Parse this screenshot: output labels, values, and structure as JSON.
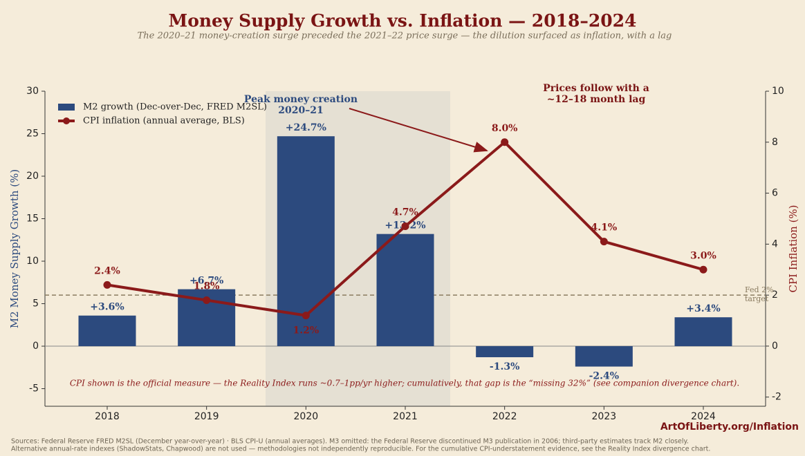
{
  "chart_data": {
    "type": "bar-line",
    "title": "Money Supply Growth vs. Inflation — 2018–2024",
    "subtitle": "The 2020–21 money-creation surge preceded the 2021–22 price surge — the dilution surfaced as inflation, with a lag",
    "categories": [
      "2018",
      "2019",
      "2020",
      "2021",
      "2022",
      "2023",
      "2024"
    ],
    "series": [
      {
        "name": "M2 growth (Dec-over-Dec, FRED M2SL)",
        "color": "#2c4a7e",
        "type": "bar",
        "values": [
          3.6,
          6.7,
          24.7,
          13.2,
          -1.3,
          -2.4,
          3.4
        ],
        "value_labels": [
          "+3.6%",
          "+6.7%",
          "+24.7%",
          "+13.2%",
          "-1.3%",
          "-2.4%",
          "+3.4%"
        ]
      },
      {
        "name": "CPI inflation (annual average, BLS)",
        "color": "#8b1a1a",
        "type": "line",
        "axis": "y2",
        "values": [
          2.4,
          1.8,
          1.2,
          4.7,
          8.0,
          4.1,
          3.0
        ],
        "value_labels": [
          "2.4%",
          "1.8%",
          "1.2%",
          "4.7%",
          "8.0%",
          "4.1%",
          "3.0%"
        ]
      }
    ],
    "ylabel": "M2 Money Supply Growth (%)",
    "y2label": "CPI Inflation (%)",
    "ylim": [
      -7.07,
      30
    ],
    "yticks": [
      -5,
      0,
      5,
      10,
      15,
      20,
      25,
      30
    ],
    "y2lim": [
      -2.36,
      10
    ],
    "y2ticks": [
      -2,
      0,
      2,
      4,
      6,
      8,
      10
    ],
    "grid": false,
    "legend": "upper-left",
    "target_line": {
      "value": 2,
      "axis": "y2",
      "label": [
        "Fed 2%",
        "target"
      ]
    },
    "annotations": [
      {
        "text": [
          "Peak money creation",
          "2020–21"
        ]
      },
      {
        "text": [
          "Prices follow with a",
          "~12–18 month lag"
        ]
      }
    ],
    "note": "CPI shown is the official measure — the Reality Index runs ~0.7–1pp/yr higher; cumulatively, that gap is the “missing 32%” (see companion divergence chart).",
    "brand": "ArtOfLiberty.org/Inflation",
    "sources": [
      "Sources: Federal Reserve FRED M2SL (December year-over-year) · BLS CPI-U (annual averages). M3 omitted: the Federal Reserve discontinued M3 publication in 2006; third-party estimates track M2 closely.",
      "Alternative annual-rate indexes (ShadowStats, Chapwood) are not used — methodologies not independently reproducible. For the cumulative CPI-understatement evidence, see the Reality Index divergence chart."
    ]
  }
}
